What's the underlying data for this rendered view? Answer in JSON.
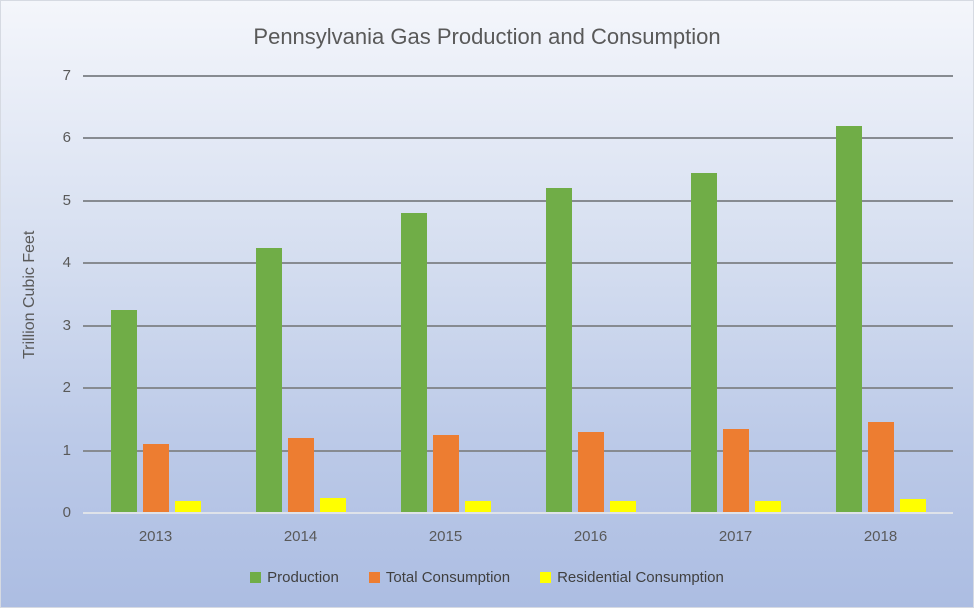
{
  "chart_data": {
    "type": "bar",
    "title": "Pennsylvania Gas Production and Consumption",
    "xlabel": "",
    "ylabel": "Trillion Cubic Feet",
    "categories": [
      "2013",
      "2014",
      "2015",
      "2016",
      "2017",
      "2018"
    ],
    "series": [
      {
        "name": "Production",
        "color": "#70AD47",
        "values": [
          3.25,
          4.25,
          4.8,
          5.2,
          5.45,
          6.2
        ]
      },
      {
        "name": "Total Consumption",
        "color": "#ED7D31",
        "values": [
          1.1,
          1.2,
          1.25,
          1.3,
          1.35,
          1.45
        ]
      },
      {
        "name": "Residential Consumption",
        "color": "#FFFF00",
        "values": [
          0.2,
          0.24,
          0.2,
          0.2,
          0.2,
          0.22
        ]
      }
    ],
    "ylim": [
      0,
      7
    ],
    "yticks": [
      0,
      1,
      2,
      3,
      4,
      5,
      6,
      7
    ],
    "grid": true,
    "legend_position": "bottom"
  }
}
